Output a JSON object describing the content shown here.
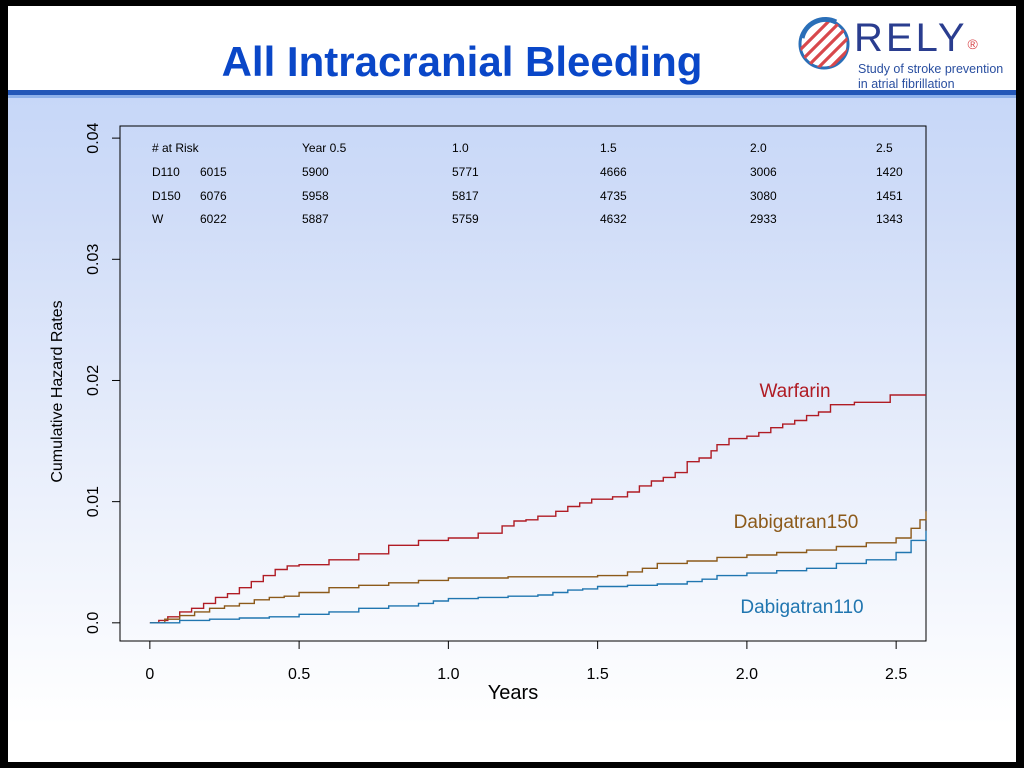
{
  "slide": {
    "title": "All Intracranial Bleeding",
    "logo": {
      "wordmark": "RELY",
      "registered": "®",
      "tagline_line1": "Study of stroke prevention",
      "tagline_line2": "in atrial fibrillation",
      "colors": {
        "wordmark": "#2a3d8f",
        "accent": "#d8484c"
      }
    },
    "colors": {
      "title": "#0a47c8",
      "rule": "#2457b8"
    }
  },
  "chart_data": {
    "type": "line",
    "step": true,
    "xlabel": "Years",
    "ylabel": "Cumulative Hazard Rates",
    "xlim": [
      -0.1,
      2.6
    ],
    "ylim": [
      -0.0015,
      0.041
    ],
    "xticks": [
      {
        "value": 0,
        "label": "0"
      },
      {
        "value": 0.5,
        "label": "0.5"
      },
      {
        "value": 1.0,
        "label": "1.0"
      },
      {
        "value": 1.5,
        "label": "1.5"
      },
      {
        "value": 2.0,
        "label": "2.0"
      },
      {
        "value": 2.5,
        "label": "2.5"
      }
    ],
    "yticks": [
      {
        "value": 0,
        "label": "0.0"
      },
      {
        "value": 0.01,
        "label": "0.01"
      },
      {
        "value": 0.02,
        "label": "0.02"
      },
      {
        "value": 0.03,
        "label": "0.03"
      },
      {
        "value": 0.04,
        "label": "0.04"
      }
    ],
    "grid": false,
    "risk_table": {
      "header": [
        "# at Risk",
        "",
        "Year 0.5",
        "1.0",
        "1.5",
        "2.0",
        "2.5"
      ],
      "rows": [
        [
          "D110",
          "6015",
          "5900",
          "5771",
          "4666",
          "3006",
          "1420"
        ],
        [
          "D150",
          "6076",
          "5958",
          "5817",
          "4735",
          "3080",
          "1451"
        ],
        [
          "W",
          "6022",
          "5887",
          "5759",
          "4632",
          "2933",
          "1343"
        ]
      ]
    },
    "series": [
      {
        "name": "Warfarin",
        "color": "#b01c24",
        "x": [
          0,
          0.03,
          0.06,
          0.1,
          0.14,
          0.18,
          0.22,
          0.26,
          0.3,
          0.34,
          0.38,
          0.42,
          0.46,
          0.5,
          0.6,
          0.7,
          0.8,
          0.9,
          1.0,
          1.1,
          1.18,
          1.22,
          1.26,
          1.3,
          1.36,
          1.4,
          1.44,
          1.48,
          1.55,
          1.6,
          1.64,
          1.68,
          1.72,
          1.76,
          1.8,
          1.84,
          1.88,
          1.9,
          1.94,
          2.0,
          2.04,
          2.08,
          2.12,
          2.16,
          2.2,
          2.24,
          2.28,
          2.36,
          2.48,
          2.6
        ],
        "y": [
          0,
          0.0002,
          0.0005,
          0.0009,
          0.0012,
          0.0016,
          0.0021,
          0.0024,
          0.0029,
          0.0034,
          0.0039,
          0.0044,
          0.0047,
          0.0048,
          0.0052,
          0.0057,
          0.0064,
          0.0068,
          0.007,
          0.0074,
          0.008,
          0.0084,
          0.0085,
          0.0088,
          0.0092,
          0.0096,
          0.0099,
          0.0102,
          0.0104,
          0.0108,
          0.0113,
          0.0117,
          0.012,
          0.0124,
          0.0133,
          0.0136,
          0.0142,
          0.0147,
          0.0152,
          0.0154,
          0.0157,
          0.0161,
          0.0164,
          0.0167,
          0.0171,
          0.0174,
          0.018,
          0.0182,
          0.0188,
          0.0188
        ]
      },
      {
        "name": "Dabigatran150",
        "color": "#8c5a1a",
        "x": [
          0,
          0.05,
          0.1,
          0.15,
          0.2,
          0.25,
          0.3,
          0.35,
          0.4,
          0.45,
          0.5,
          0.6,
          0.7,
          0.8,
          0.9,
          1.0,
          1.2,
          1.4,
          1.5,
          1.6,
          1.65,
          1.7,
          1.8,
          1.9,
          2.0,
          2.1,
          2.2,
          2.3,
          2.4,
          2.5,
          2.55,
          2.58,
          2.6
        ],
        "y": [
          0,
          0.0003,
          0.0006,
          0.0009,
          0.0012,
          0.0014,
          0.0016,
          0.0019,
          0.0021,
          0.0022,
          0.0025,
          0.0029,
          0.0031,
          0.0033,
          0.0035,
          0.0037,
          0.0038,
          0.0038,
          0.0039,
          0.0042,
          0.0045,
          0.0049,
          0.0051,
          0.0054,
          0.0056,
          0.0058,
          0.006,
          0.0063,
          0.0066,
          0.007,
          0.0078,
          0.0085,
          0.0092
        ]
      },
      {
        "name": "Dabigatran110",
        "color": "#2076b0",
        "x": [
          0,
          0.1,
          0.2,
          0.3,
          0.4,
          0.5,
          0.6,
          0.7,
          0.8,
          0.9,
          0.95,
          1.0,
          1.1,
          1.2,
          1.3,
          1.35,
          1.4,
          1.45,
          1.5,
          1.6,
          1.7,
          1.8,
          1.85,
          1.9,
          2.0,
          2.1,
          2.2,
          2.3,
          2.4,
          2.5,
          2.55,
          2.6
        ],
        "y": [
          0,
          0.0002,
          0.0003,
          0.0004,
          0.0005,
          0.0007,
          0.0009,
          0.0012,
          0.0014,
          0.0016,
          0.0018,
          0.002,
          0.0021,
          0.0022,
          0.0023,
          0.0025,
          0.0027,
          0.0028,
          0.003,
          0.0031,
          0.0032,
          0.0034,
          0.0036,
          0.0039,
          0.0041,
          0.0043,
          0.0045,
          0.0049,
          0.0052,
          0.0058,
          0.0068,
          0.0076
        ]
      }
    ]
  }
}
